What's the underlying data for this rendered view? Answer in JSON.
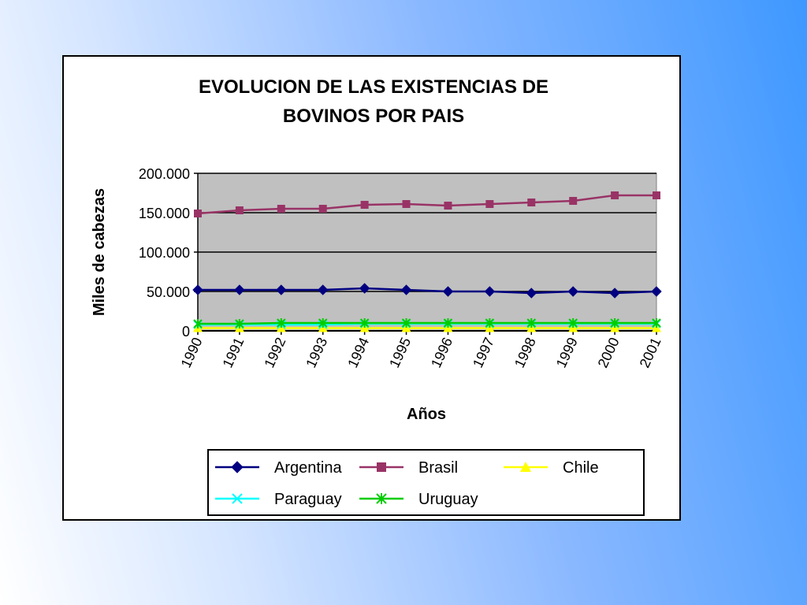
{
  "chart_data": {
    "type": "line",
    "title": [
      "EVOLUCION DE LAS EXISTENCIAS DE",
      "BOVINOS POR PAIS"
    ],
    "xlabel": "Años",
    "ylabel": "Miles de cabezas",
    "x": [
      "1990",
      "1991",
      "1992",
      "1993",
      "1994",
      "1995",
      "1996",
      "1997",
      "1998",
      "1999",
      "2000",
      "2001"
    ],
    "ylim": [
      0,
      200000
    ],
    "yticks": [
      0,
      50000,
      100000,
      150000,
      200000
    ],
    "ytick_labels": [
      "0",
      "50.000",
      "100.000",
      "150.000",
      "200.000"
    ],
    "plot_background": "#c0c0c0",
    "grid": true,
    "legend_position": "bottom",
    "series": [
      {
        "name": "Argentina",
        "color": "#000080",
        "marker": "diamond",
        "values": [
          52000,
          52000,
          52000,
          52000,
          54000,
          52000,
          50000,
          50000,
          48000,
          50000,
          48000,
          50000
        ]
      },
      {
        "name": "Brasil",
        "color": "#993366",
        "marker": "square",
        "values": [
          149000,
          153000,
          155000,
          155000,
          160000,
          161000,
          159000,
          161000,
          163000,
          165000,
          172000,
          172000
        ]
      },
      {
        "name": "Chile",
        "color": "#ffff00",
        "marker": "triangle",
        "values": [
          3500,
          3500,
          3500,
          3500,
          3500,
          3500,
          3500,
          3500,
          3500,
          3500,
          3500,
          3500
        ]
      },
      {
        "name": "Paraguay",
        "color": "#00ffff",
        "marker": "x",
        "values": [
          8000,
          8000,
          8000,
          8000,
          9000,
          9000,
          9000,
          9000,
          9000,
          9000,
          9000,
          9000
        ]
      },
      {
        "name": "Uruguay",
        "color": "#00cc00",
        "marker": "star",
        "values": [
          9000,
          9000,
          10000,
          10000,
          10000,
          10000,
          10000,
          10000,
          10000,
          10000,
          10000,
          10000
        ]
      }
    ]
  }
}
